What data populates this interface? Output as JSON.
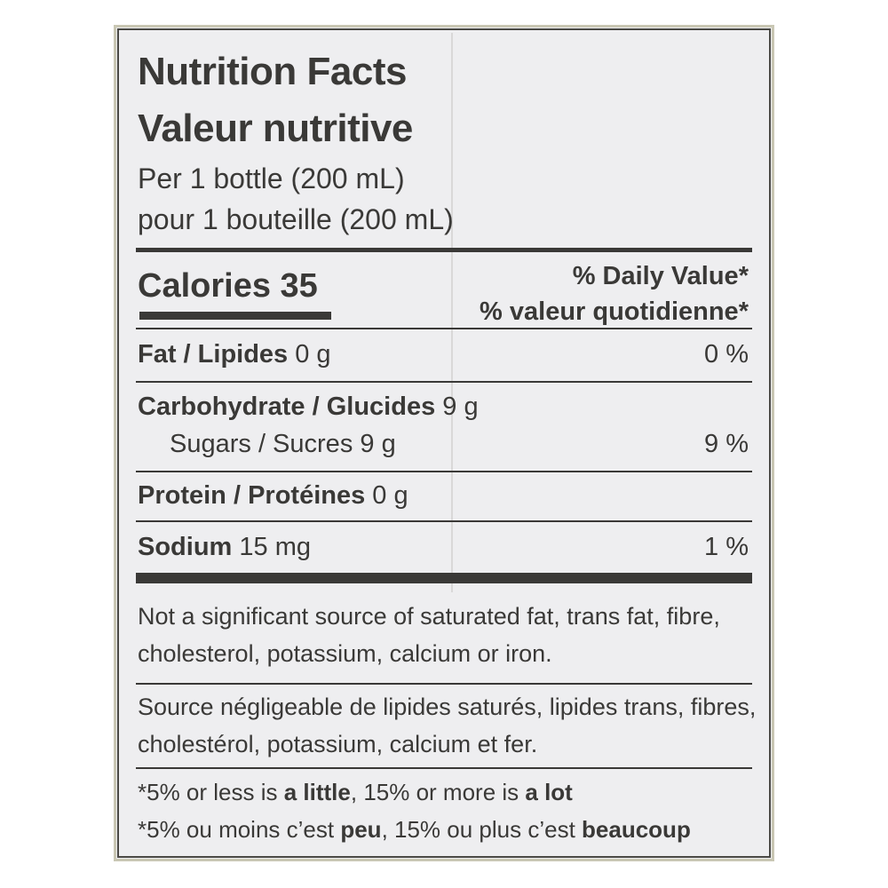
{
  "title_en": "Nutrition Facts",
  "title_fr": "Valeur nutritive",
  "serving_en": "Per 1 bottle (200 mL)",
  "serving_fr": "pour 1 bouteille (200 mL)",
  "calories_label": "Calories",
  "calories_value": "35",
  "dv_en": "% Daily Value",
  "dv_fr": "% valeur quotidienne",
  "dv_mark": "*",
  "nutrients": [
    {
      "label": "Fat / Lipides",
      "amount": "0 g",
      "dv": "0 %"
    },
    {
      "label": "Carbohydrate / Glucides",
      "amount": "9 g",
      "dv": ""
    },
    {
      "label": "Sugars / Sucres",
      "amount": "9 g",
      "dv": "9 %"
    },
    {
      "label": "Protein / Protéines",
      "amount": "0 g",
      "dv": ""
    },
    {
      "label": "Sodium",
      "amount": "15 mg",
      "dv": "1 %"
    }
  ],
  "not_significant_en": [
    "Not a significant source of saturated fat, trans fat, fibre,",
    "cholesterol, potassium, calcium or iron."
  ],
  "not_significant_fr": [
    "Source négligeable de lipides saturés, lipides trans, fibres,",
    "cholestérol, potassium, calcium et fer."
  ],
  "footnote_en": {
    "pre": "*5% or less is ",
    "b1": "a little",
    "mid": ", 15% or more is ",
    "b2": "a lot"
  },
  "footnote_fr": {
    "pre": "*5% ou moins c’est ",
    "b1": "peu",
    "mid": ", 15% ou plus c’est ",
    "b2": "beaucoup"
  }
}
